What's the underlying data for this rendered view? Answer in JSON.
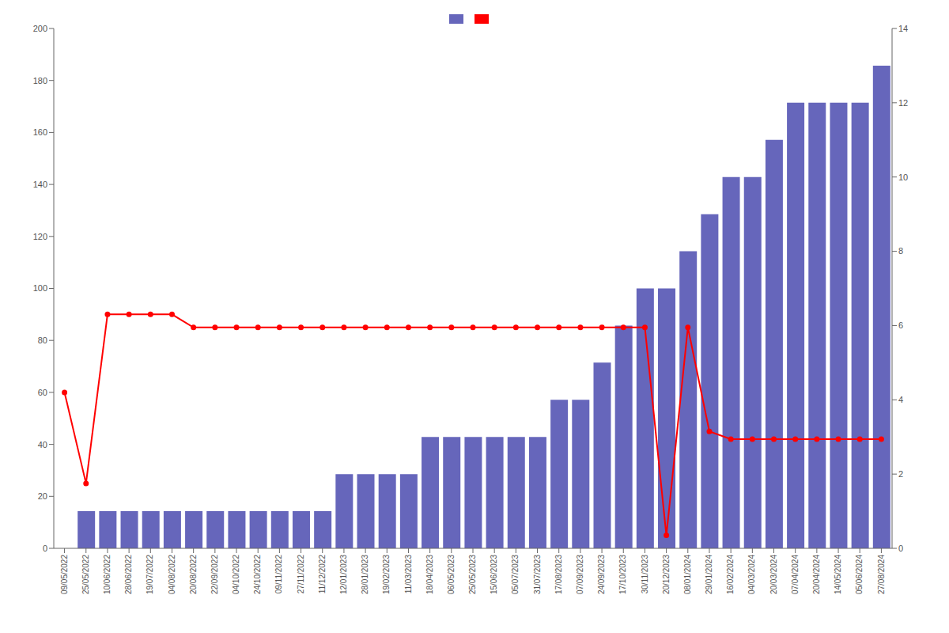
{
  "chart_data": {
    "type": "bar",
    "categories": [
      "09/05/2022",
      "25/05/2022",
      "10/06/2022",
      "28/06/2022",
      "19/07/2022",
      "04/08/2022",
      "20/08/2022",
      "22/09/2022",
      "04/10/2022",
      "24/10/2022",
      "09/11/2022",
      "27/11/2022",
      "11/12/2022",
      "12/01/2023",
      "28/01/2023",
      "19/02/2023",
      "11/03/2023",
      "18/04/2023",
      "06/05/2023",
      "25/05/2023",
      "15/06/2023",
      "05/07/2023",
      "31/07/2023",
      "17/08/2023",
      "07/09/2023",
      "24/09/2023",
      "17/10/2023",
      "30/11/2023",
      "20/12/2023",
      "08/01/2024",
      "29/01/2024",
      "16/02/2024",
      "04/03/2024",
      "20/03/2024",
      "07/04/2024",
      "20/04/2024",
      "14/05/2024",
      "05/06/2024",
      "27/08/2024"
    ],
    "series": [
      {
        "type": "bar",
        "axis": "y2",
        "color": "#6666bb",
        "values": [
          0,
          1,
          1,
          1,
          1,
          1,
          1,
          1,
          1,
          1,
          1,
          1,
          1,
          2,
          2,
          2,
          2,
          3,
          3,
          3,
          3,
          3,
          3,
          4,
          4,
          5,
          6,
          7,
          7,
          8,
          9,
          10,
          10,
          11,
          12,
          12,
          12,
          12,
          13
        ]
      },
      {
        "type": "line",
        "color": "#ff0000",
        "marker": "circle",
        "values": [
          60,
          25,
          90,
          90,
          90,
          90,
          85,
          85,
          85,
          85,
          85,
          85,
          85,
          85,
          85,
          85,
          85,
          85,
          85,
          85,
          85,
          85,
          85,
          85,
          85,
          85,
          85,
          85,
          5,
          85,
          45,
          42,
          42,
          42,
          42,
          42,
          42,
          42,
          42
        ]
      }
    ],
    "ylim": [
      0,
      200
    ],
    "yticks": [
      0,
      20,
      40,
      60,
      80,
      100,
      120,
      140,
      160,
      180,
      200
    ],
    "y2lim": [
      0,
      14
    ],
    "y2ticks": [
      0,
      2,
      4,
      6,
      8,
      10,
      12,
      14
    ],
    "grid": false,
    "legend": "top"
  }
}
